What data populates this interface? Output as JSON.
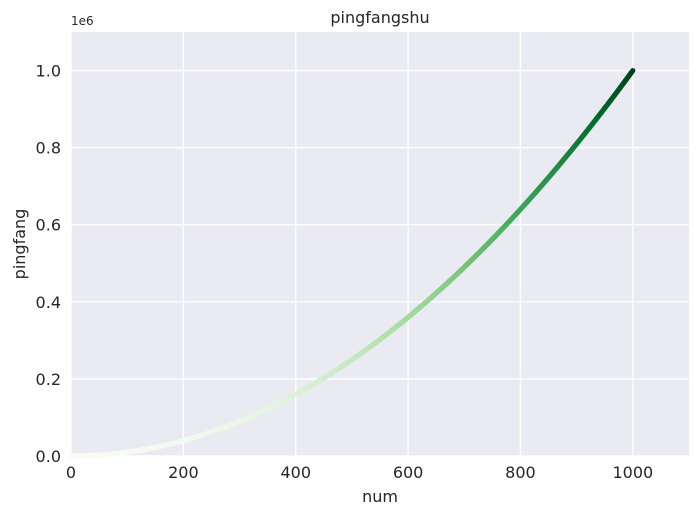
{
  "chart_data": {
    "type": "scatter",
    "title": "pingfangshu",
    "xlabel": "num",
    "ylabel": "pingfang",
    "y_offset_label": "1e6",
    "xlim": [
      0,
      1100
    ],
    "ylim": [
      0,
      1100000
    ],
    "xticks": [
      0,
      200,
      400,
      600,
      800,
      1000
    ],
    "yticks": [
      0,
      200000,
      400000,
      600000,
      800000,
      1000000
    ],
    "xtick_labels": [
      "0",
      "200",
      "400",
      "600",
      "800",
      "1000"
    ],
    "ytick_labels": [
      "0.0",
      "0.2",
      "0.4",
      "0.6",
      "0.8",
      "1.0"
    ],
    "grid": true,
    "style": "seaborn-darkgrid",
    "colormap": "Greens",
    "series": [
      {
        "x_start": 1,
        "x_end": 1000,
        "x_step": 1,
        "y_formula": "x^2",
        "color_by": "y"
      }
    ],
    "colors": {
      "background": "#eaeaf2",
      "grid": "#ffffff",
      "cmap_low": "#f7fcf5",
      "cmap_mid": "#a1d99b",
      "cmap_high": "#00441b"
    }
  }
}
